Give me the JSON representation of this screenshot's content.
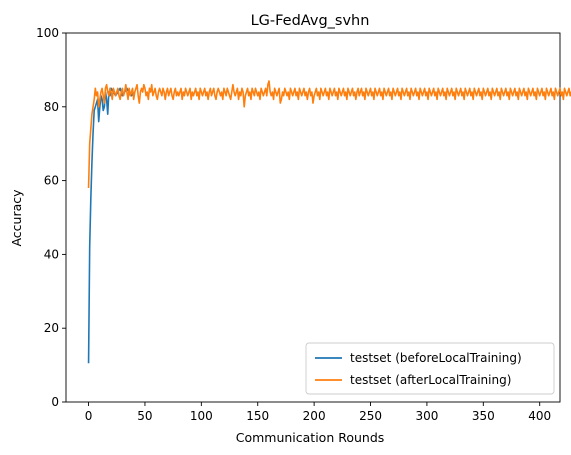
{
  "chart_data": {
    "type": "line",
    "title": "LG-FedAvg_svhn",
    "xlabel": "Communication Rounds",
    "ylabel": "Accuracy",
    "xlim": [
      -20,
      418
    ],
    "ylim": [
      0,
      100
    ],
    "xticks": [
      0,
      50,
      100,
      150,
      200,
      250,
      300,
      350,
      400
    ],
    "yticks": [
      0,
      20,
      40,
      60,
      80,
      100
    ],
    "grid": false,
    "legend": "lower-right",
    "series": [
      {
        "name": "testset (beforeLocalTraining)",
        "color": "#1f77b4",
        "x": [
          0,
          1,
          2,
          3,
          4,
          5,
          6,
          7,
          8,
          9,
          10,
          11,
          12,
          13,
          14,
          15,
          16,
          17,
          18,
          19,
          20,
          22,
          24,
          26,
          28,
          30,
          32,
          34,
          36,
          38,
          40
        ],
        "y": [
          10.5,
          42,
          55,
          65,
          73,
          79,
          80,
          81,
          82,
          76,
          80,
          83,
          82,
          79,
          80,
          84,
          82,
          78,
          84,
          83,
          85,
          84,
          83,
          84,
          85,
          83,
          84,
          85,
          84,
          83,
          84
        ]
      },
      {
        "name": "testset (afterLocalTraining)",
        "color": "#ff7f0e",
        "x_start": 0,
        "y": [
          58,
          70,
          74,
          78,
          80,
          82,
          85,
          83,
          84,
          80,
          82,
          84,
          85,
          83,
          81,
          85,
          86,
          84,
          83,
          85,
          84,
          82,
          85,
          84,
          83,
          84,
          85,
          83,
          82,
          84,
          85,
          83,
          84,
          86,
          84,
          82,
          85,
          83,
          84,
          85,
          82,
          84,
          85,
          86,
          83,
          81,
          84,
          85,
          84,
          86,
          85,
          83,
          84,
          82,
          85,
          84,
          86,
          83,
          84,
          85,
          83,
          82,
          84,
          85,
          84,
          83,
          85,
          84,
          82,
          84,
          85,
          83,
          84,
          85,
          83,
          82,
          84,
          85,
          83,
          84,
          83,
          84,
          85,
          82,
          84,
          83,
          85,
          84,
          83,
          84,
          85,
          82,
          84,
          83,
          84,
          85,
          83,
          84,
          82,
          85,
          84,
          83,
          84,
          85,
          83,
          84,
          82,
          84,
          85,
          83,
          84,
          85,
          83,
          82,
          84,
          85,
          84,
          83,
          84,
          82,
          85,
          84,
          83,
          85,
          84,
          83,
          82,
          84,
          86,
          84,
          83,
          84,
          85,
          82,
          84,
          83,
          85,
          84,
          80,
          83,
          84,
          85,
          83,
          84,
          82,
          85,
          84,
          83,
          85,
          84,
          83,
          84,
          82,
          85,
          84,
          83,
          84,
          85,
          83,
          86,
          87,
          84,
          83,
          84,
          82,
          85,
          84,
          83,
          84,
          85,
          81,
          82,
          84,
          83,
          85,
          84,
          83,
          84,
          82,
          85,
          84,
          83,
          84,
          85,
          83,
          84,
          82,
          85,
          84,
          83,
          84,
          85,
          83,
          84,
          82,
          84,
          85,
          83,
          84,
          81,
          83,
          84,
          85,
          83,
          84,
          82,
          85,
          84,
          83,
          84,
          85,
          83,
          84,
          82,
          85,
          84,
          83,
          84,
          85,
          83,
          84,
          82,
          85,
          84,
          83,
          84,
          85,
          83,
          84,
          82,
          85,
          84,
          83,
          84,
          85,
          83,
          84,
          82,
          84,
          85,
          83,
          84,
          85,
          83,
          84,
          82,
          85,
          84,
          83,
          84,
          85,
          83,
          84,
          82,
          85,
          84,
          83,
          84,
          85,
          83,
          84,
          82,
          85,
          84,
          83,
          84,
          85,
          83,
          84,
          82,
          85,
          84,
          83,
          84,
          85,
          83,
          84,
          82,
          85,
          84,
          83,
          84,
          85,
          83,
          84,
          82,
          85,
          84,
          83,
          84,
          85,
          83,
          84,
          82,
          85,
          84,
          83,
          84,
          85,
          83,
          84,
          82,
          85,
          84,
          83,
          84,
          85,
          83,
          84,
          82,
          85,
          84,
          83,
          84,
          85,
          83,
          84,
          82,
          85,
          84,
          83,
          84,
          85,
          83,
          84,
          82,
          85,
          84,
          83,
          84,
          85,
          83,
          84,
          82,
          85,
          84,
          83,
          84,
          85,
          83,
          84,
          82,
          85,
          84,
          83,
          84,
          85,
          83,
          84,
          82,
          85,
          84,
          83,
          84,
          85,
          83,
          84,
          82,
          85,
          84,
          83,
          84,
          85,
          83,
          84,
          82,
          85,
          84,
          83,
          84,
          85,
          83,
          84,
          82,
          85,
          84,
          83,
          84,
          85,
          83,
          84,
          82,
          85,
          84,
          83,
          84,
          85,
          83,
          84,
          82,
          85,
          84,
          83,
          84,
          85,
          83,
          84,
          82,
          85,
          84,
          83,
          84,
          85,
          83,
          84,
          82,
          85,
          84,
          83,
          84,
          85,
          83,
          84,
          82,
          85,
          84,
          83,
          84,
          85,
          83,
          84,
          82,
          85,
          84,
          83,
          84,
          85,
          83,
          84,
          81,
          85
        ]
      }
    ]
  }
}
